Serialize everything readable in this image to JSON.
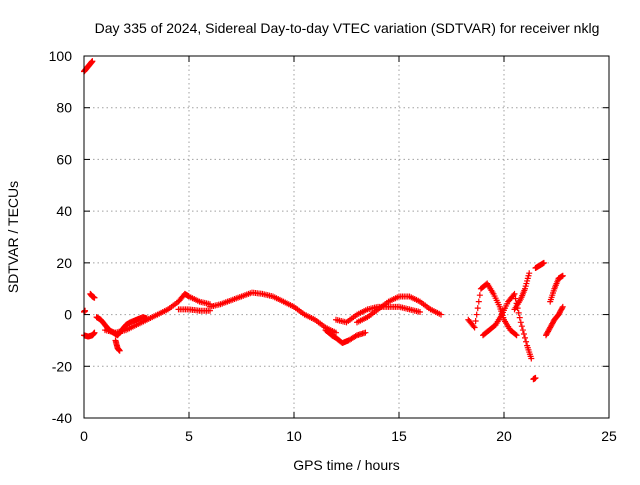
{
  "chart_data": {
    "type": "scatter",
    "title": "Day 335 of 2024, Sidereal Day-to-day VTEC variation (SDTVAR) for receiver nklg",
    "xlabel": "GPS time / hours",
    "ylabel": "SDTVAR / TECUs",
    "xlim": [
      0,
      25
    ],
    "ylim": [
      -40,
      100
    ],
    "xticks": [
      "0",
      "5",
      "10",
      "15",
      "20",
      "25"
    ],
    "yticks": [
      "-40",
      "-20",
      "0",
      "20",
      "40",
      "60",
      "80",
      "100"
    ],
    "grid": true,
    "marker": "+",
    "color": "#ff0000",
    "series": [
      {
        "name": "SDTVAR",
        "segments": [
          {
            "x": [
              0.0,
              0.1,
              0.2,
              0.3,
              0.4
            ],
            "y": [
              94,
              95,
              96,
              97,
              98
            ]
          },
          {
            "x": [
              0.0,
              0.05
            ],
            "y": [
              1,
              1.5
            ]
          },
          {
            "x": [
              0.0,
              0.2,
              0.4,
              0.5
            ],
            "y": [
              -8,
              -8.5,
              -8,
              -7
            ]
          },
          {
            "x": [
              0.3,
              0.4,
              0.5
            ],
            "y": [
              8,
              7,
              6.5
            ]
          },
          {
            "x": [
              0.6,
              0.8,
              1.0,
              1.2,
              1.4,
              1.6,
              1.8,
              2.0,
              2.2,
              2.5,
              2.8,
              3.0
            ],
            "y": [
              -1,
              -2,
              -4,
              -6,
              -7,
              -8,
              -6,
              -4,
              -3,
              -2,
              -1,
              -1.5
            ]
          },
          {
            "x": [
              1.5,
              1.6,
              1.7
            ],
            "y": [
              -10,
              -13,
              -14
            ]
          },
          {
            "x": [
              1.0,
              1.5,
              2.0,
              2.5,
              3.0,
              3.5,
              4.0,
              4.5,
              4.8,
              5.0,
              5.5,
              6.0
            ],
            "y": [
              -6,
              -7,
              -6,
              -4,
              -2,
              0,
              2,
              5,
              8,
              7,
              5,
              4
            ]
          },
          {
            "x": [
              4.5,
              5.0,
              5.5,
              6.0
            ],
            "y": [
              2,
              2,
              1.5,
              1.5
            ]
          },
          {
            "x": [
              6.0,
              6.5,
              7.0,
              7.5,
              8.0,
              8.5,
              9.0,
              9.5,
              10.0,
              10.5,
              11.0,
              11.5,
              12.0
            ],
            "y": [
              3,
              4,
              5.5,
              7,
              8.5,
              8,
              7,
              5,
              3,
              0,
              -2,
              -5,
              -7
            ]
          },
          {
            "x": [
              11.5,
              11.8,
              12.0,
              12.3,
              12.6,
              13.0,
              13.4
            ],
            "y": [
              -6,
              -8,
              -9,
              -11,
              -10,
              -8,
              -7
            ]
          },
          {
            "x": [
              12.0,
              12.5,
              13.0,
              13.5,
              14.0,
              14.5,
              15.0,
              15.5,
              16.0
            ],
            "y": [
              -2,
              -3,
              0,
              2,
              3,
              3,
              3,
              2,
              1
            ]
          },
          {
            "x": [
              13.0,
              13.5,
              14.0,
              14.5,
              15.0,
              15.5,
              16.0,
              16.5,
              17.0
            ],
            "y": [
              -3,
              -1,
              2,
              5,
              7,
              7,
              5,
              2,
              0
            ]
          },
          {
            "x": [
              18.3,
              18.6,
              18.9,
              19.2,
              19.5,
              19.8,
              20.0,
              20.3,
              20.6
            ],
            "y": [
              -2,
              -5,
              10,
              12,
              8,
              3,
              -2,
              -6,
              -8
            ]
          },
          {
            "x": [
              19.0,
              19.3,
              19.6,
              19.9,
              20.2,
              20.5,
              20.8,
              21.1,
              21.3
            ],
            "y": [
              -8,
              -6,
              -4,
              0,
              5,
              8,
              -3,
              -12,
              -17
            ]
          },
          {
            "x": [
              20.5,
              20.8,
              21.0,
              21.2
            ],
            "y": [
              2,
              6,
              10,
              16
            ]
          },
          {
            "x": [
              21.4,
              21.5
            ],
            "y": [
              -25,
              -24.5
            ]
          },
          {
            "x": [
              21.5,
              21.7,
              21.9
            ],
            "y": [
              18,
              19,
              20
            ]
          },
          {
            "x": [
              22.0,
              22.2,
              22.4,
              22.6,
              22.8
            ],
            "y": [
              -8,
              -5,
              -2,
              0,
              3
            ]
          },
          {
            "x": [
              22.2,
              22.4,
              22.6,
              22.8
            ],
            "y": [
              5,
              10,
              14,
              15
            ]
          }
        ]
      }
    ]
  }
}
